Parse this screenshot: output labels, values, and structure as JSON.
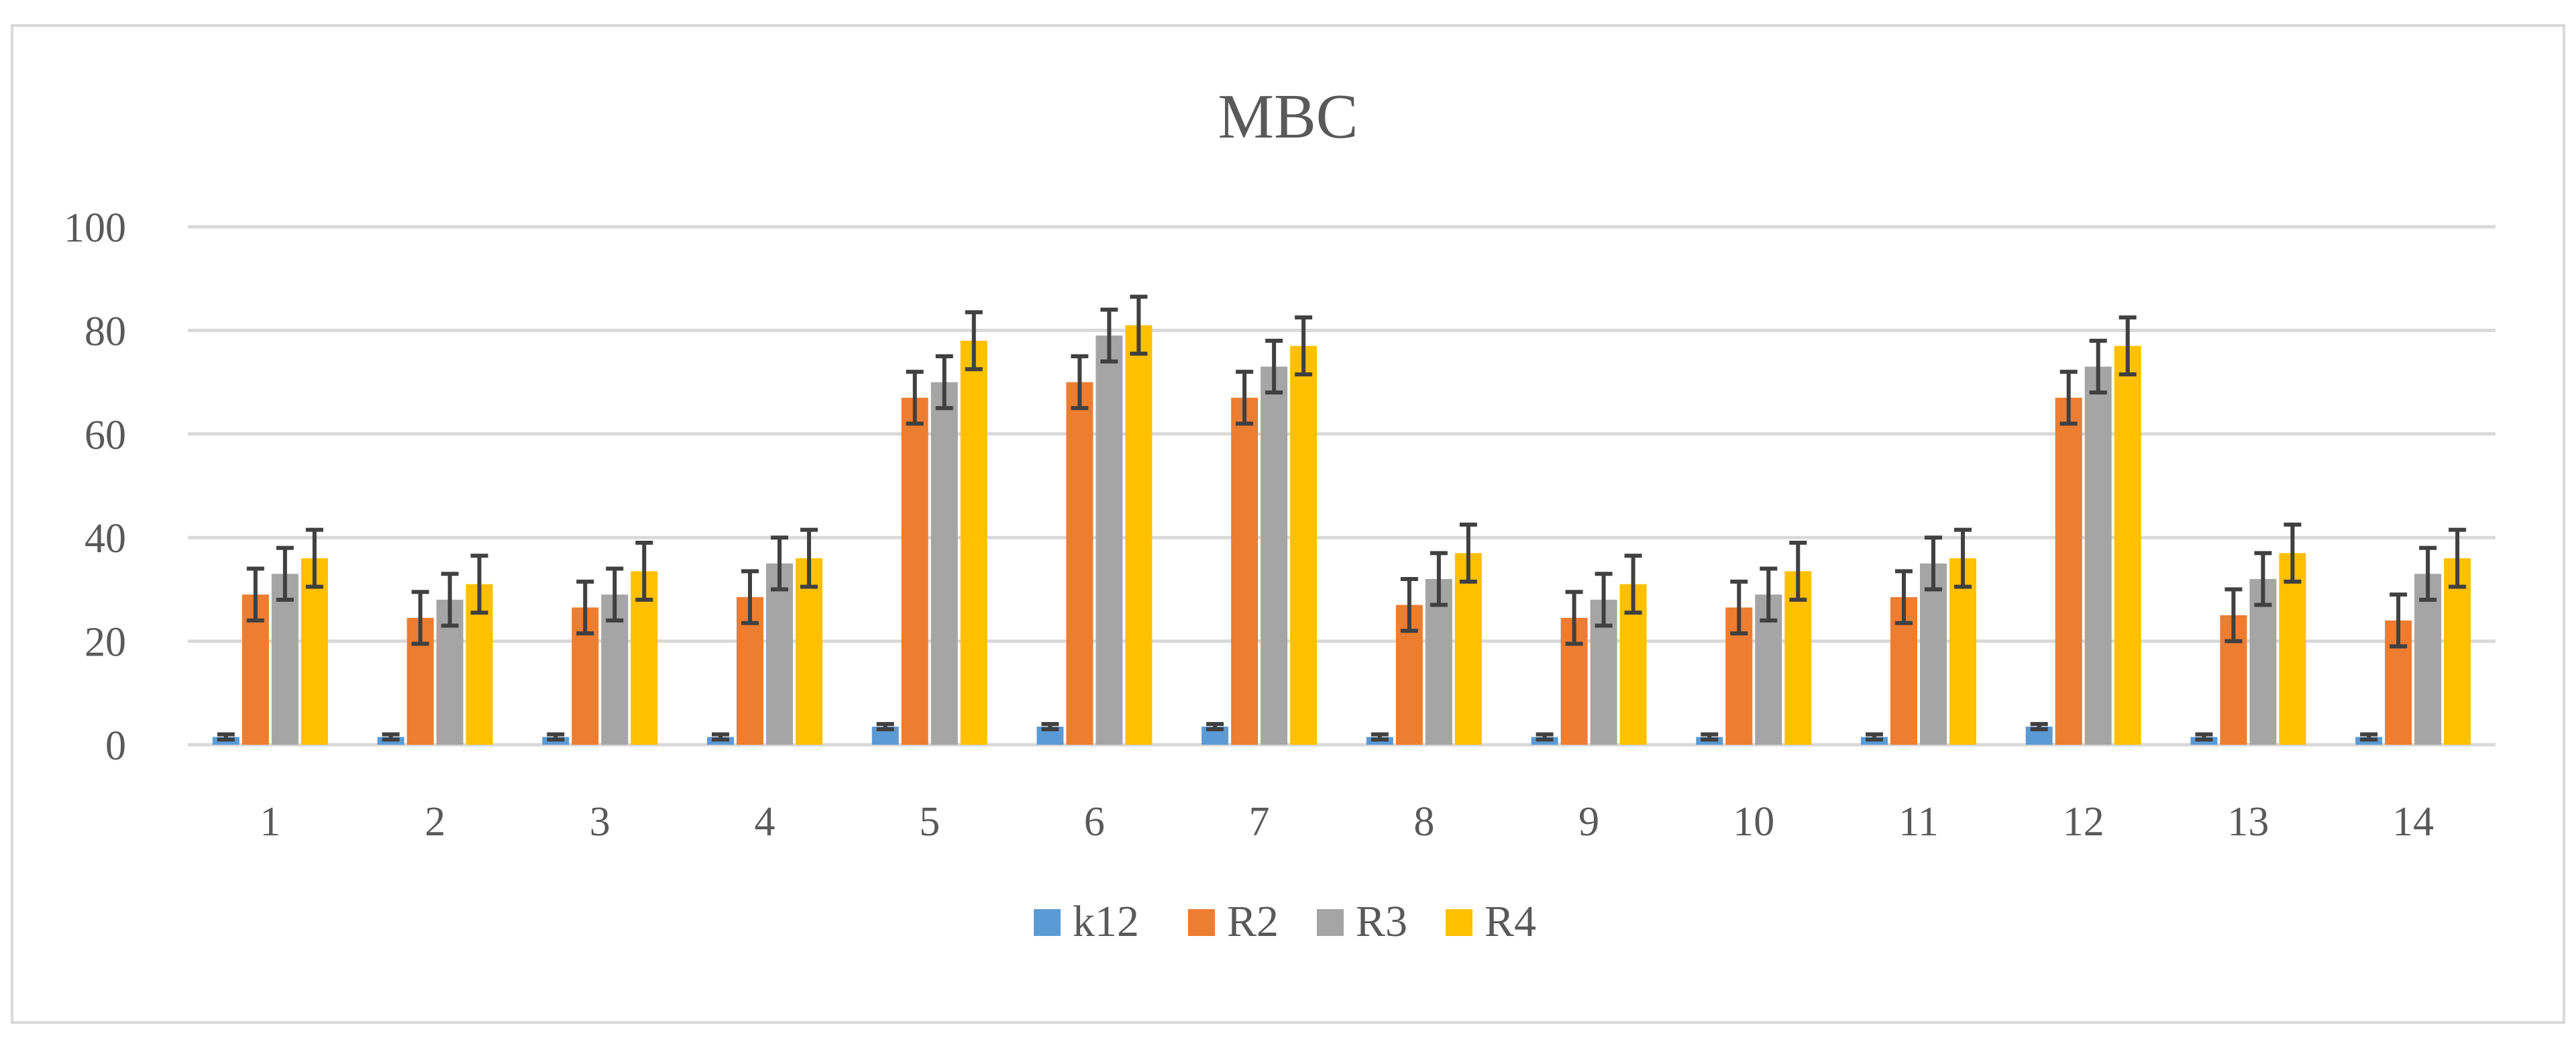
{
  "chart_data": {
    "type": "bar",
    "title": "MBC",
    "xlabel": "",
    "ylabel": "",
    "ylim": [
      0,
      100
    ],
    "yticks": [
      0,
      20,
      40,
      60,
      80,
      100
    ],
    "grid": true,
    "legend_position": "bottom",
    "categories": [
      "1",
      "2",
      "3",
      "4",
      "5",
      "6",
      "7",
      "8",
      "9",
      "10",
      "11",
      "12",
      "13",
      "14"
    ],
    "series": [
      {
        "name": "k12",
        "color": "#5B9BD5",
        "values": [
          1.5,
          1.5,
          1.5,
          1.5,
          3.5,
          3.5,
          3.5,
          1.5,
          1.5,
          1.5,
          1.5,
          3.5,
          1.5,
          1.5
        ],
        "error": [
          0.5,
          0.5,
          0.5,
          0.5,
          0.5,
          0.5,
          0.5,
          0.5,
          0.5,
          0.5,
          0.5,
          0.5,
          0.5,
          0.5
        ]
      },
      {
        "name": "R2",
        "color": "#ED7D31",
        "values": [
          29,
          24.5,
          26.5,
          28.5,
          67,
          70,
          67,
          27,
          24.5,
          26.5,
          28.5,
          67,
          25,
          24
        ],
        "error": [
          5,
          5,
          5,
          5,
          5,
          5,
          5,
          5,
          5,
          5,
          5,
          5,
          5,
          5
        ]
      },
      {
        "name": "R3",
        "color": "#A5A5A5",
        "values": [
          33,
          28,
          29,
          35,
          70,
          79,
          73,
          32,
          28,
          29,
          35,
          73,
          32,
          33
        ],
        "error": [
          5,
          5,
          5,
          5,
          5,
          5,
          5,
          5,
          5,
          5,
          5,
          5,
          5,
          5
        ]
      },
      {
        "name": "R4",
        "color": "#FFC000",
        "values": [
          36,
          31,
          33.5,
          36,
          78,
          81,
          77,
          37,
          31,
          33.5,
          36,
          77,
          37,
          36
        ],
        "error": [
          5.5,
          5.5,
          5.5,
          5.5,
          5.5,
          5.5,
          5.5,
          5.5,
          5.5,
          5.5,
          5.5,
          5.5,
          5.5,
          5.5
        ]
      }
    ]
  }
}
